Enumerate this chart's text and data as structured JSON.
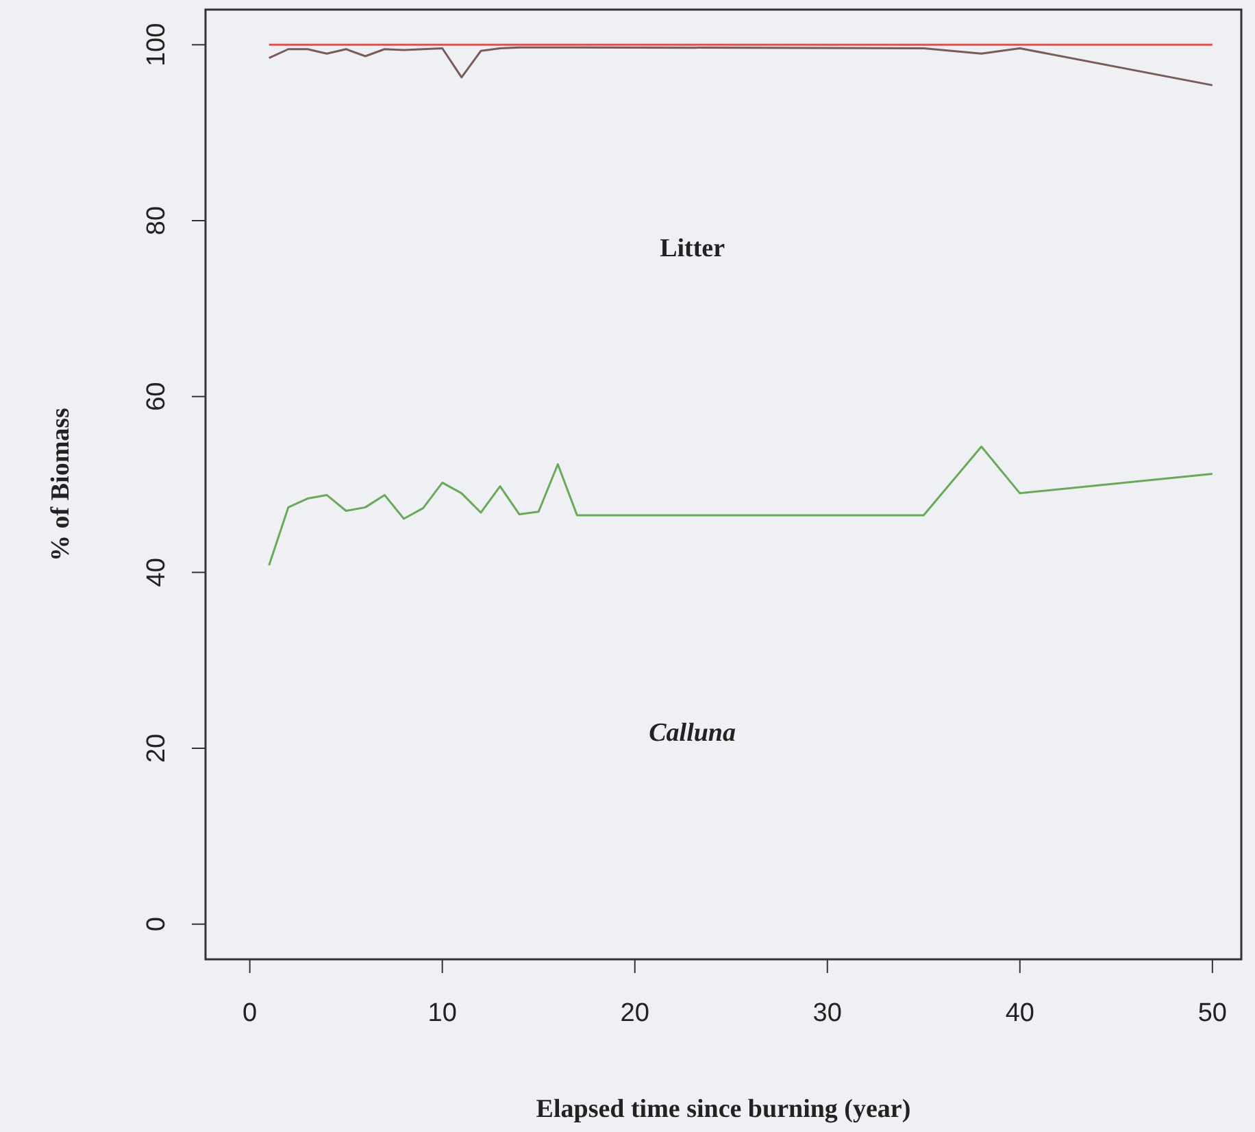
{
  "chart_data": {
    "type": "line",
    "xlabel": "Elapsed time since burning (year)",
    "ylabel": "% of Biomass",
    "x": [
      1,
      2,
      3,
      4,
      5,
      6,
      7,
      8,
      9,
      10,
      11,
      12,
      13,
      14,
      15,
      16,
      17,
      35,
      38,
      40,
      50
    ],
    "series": [
      {
        "color": "#7a5a5a",
        "values": [
          98.5,
          99.5,
          99.5,
          99,
          99.5,
          98.7,
          99.5,
          99.4,
          99.5,
          99.6,
          96.3,
          99.3,
          99.6,
          99.7,
          99.7,
          99.7,
          99.7,
          99.6,
          99,
          99.6,
          95.4
        ]
      },
      {
        "color": "#d9534f",
        "x": [
          1,
          50
        ],
        "values": [
          100,
          100
        ]
      },
      {
        "color": "#6aa85a",
        "values": [
          40.8,
          47.4,
          48.4,
          48.8,
          47,
          47.4,
          48.8,
          46.1,
          47.3,
          50.2,
          49,
          46.8,
          49.8,
          46.6,
          46.9,
          52.3,
          46.5,
          46.5,
          54.3,
          49,
          51.2
        ]
      }
    ],
    "annotations": [
      "Litter",
      "Calluna"
    ],
    "xlim": [
      -2.3,
      51.5
    ],
    "ylim": [
      -4,
      104
    ],
    "xticks": [
      0,
      10,
      20,
      30,
      40,
      50
    ],
    "yticks": [
      0,
      20,
      40,
      60,
      80,
      100
    ],
    "grid": false,
    "marker": "none",
    "line_style": "solid"
  }
}
